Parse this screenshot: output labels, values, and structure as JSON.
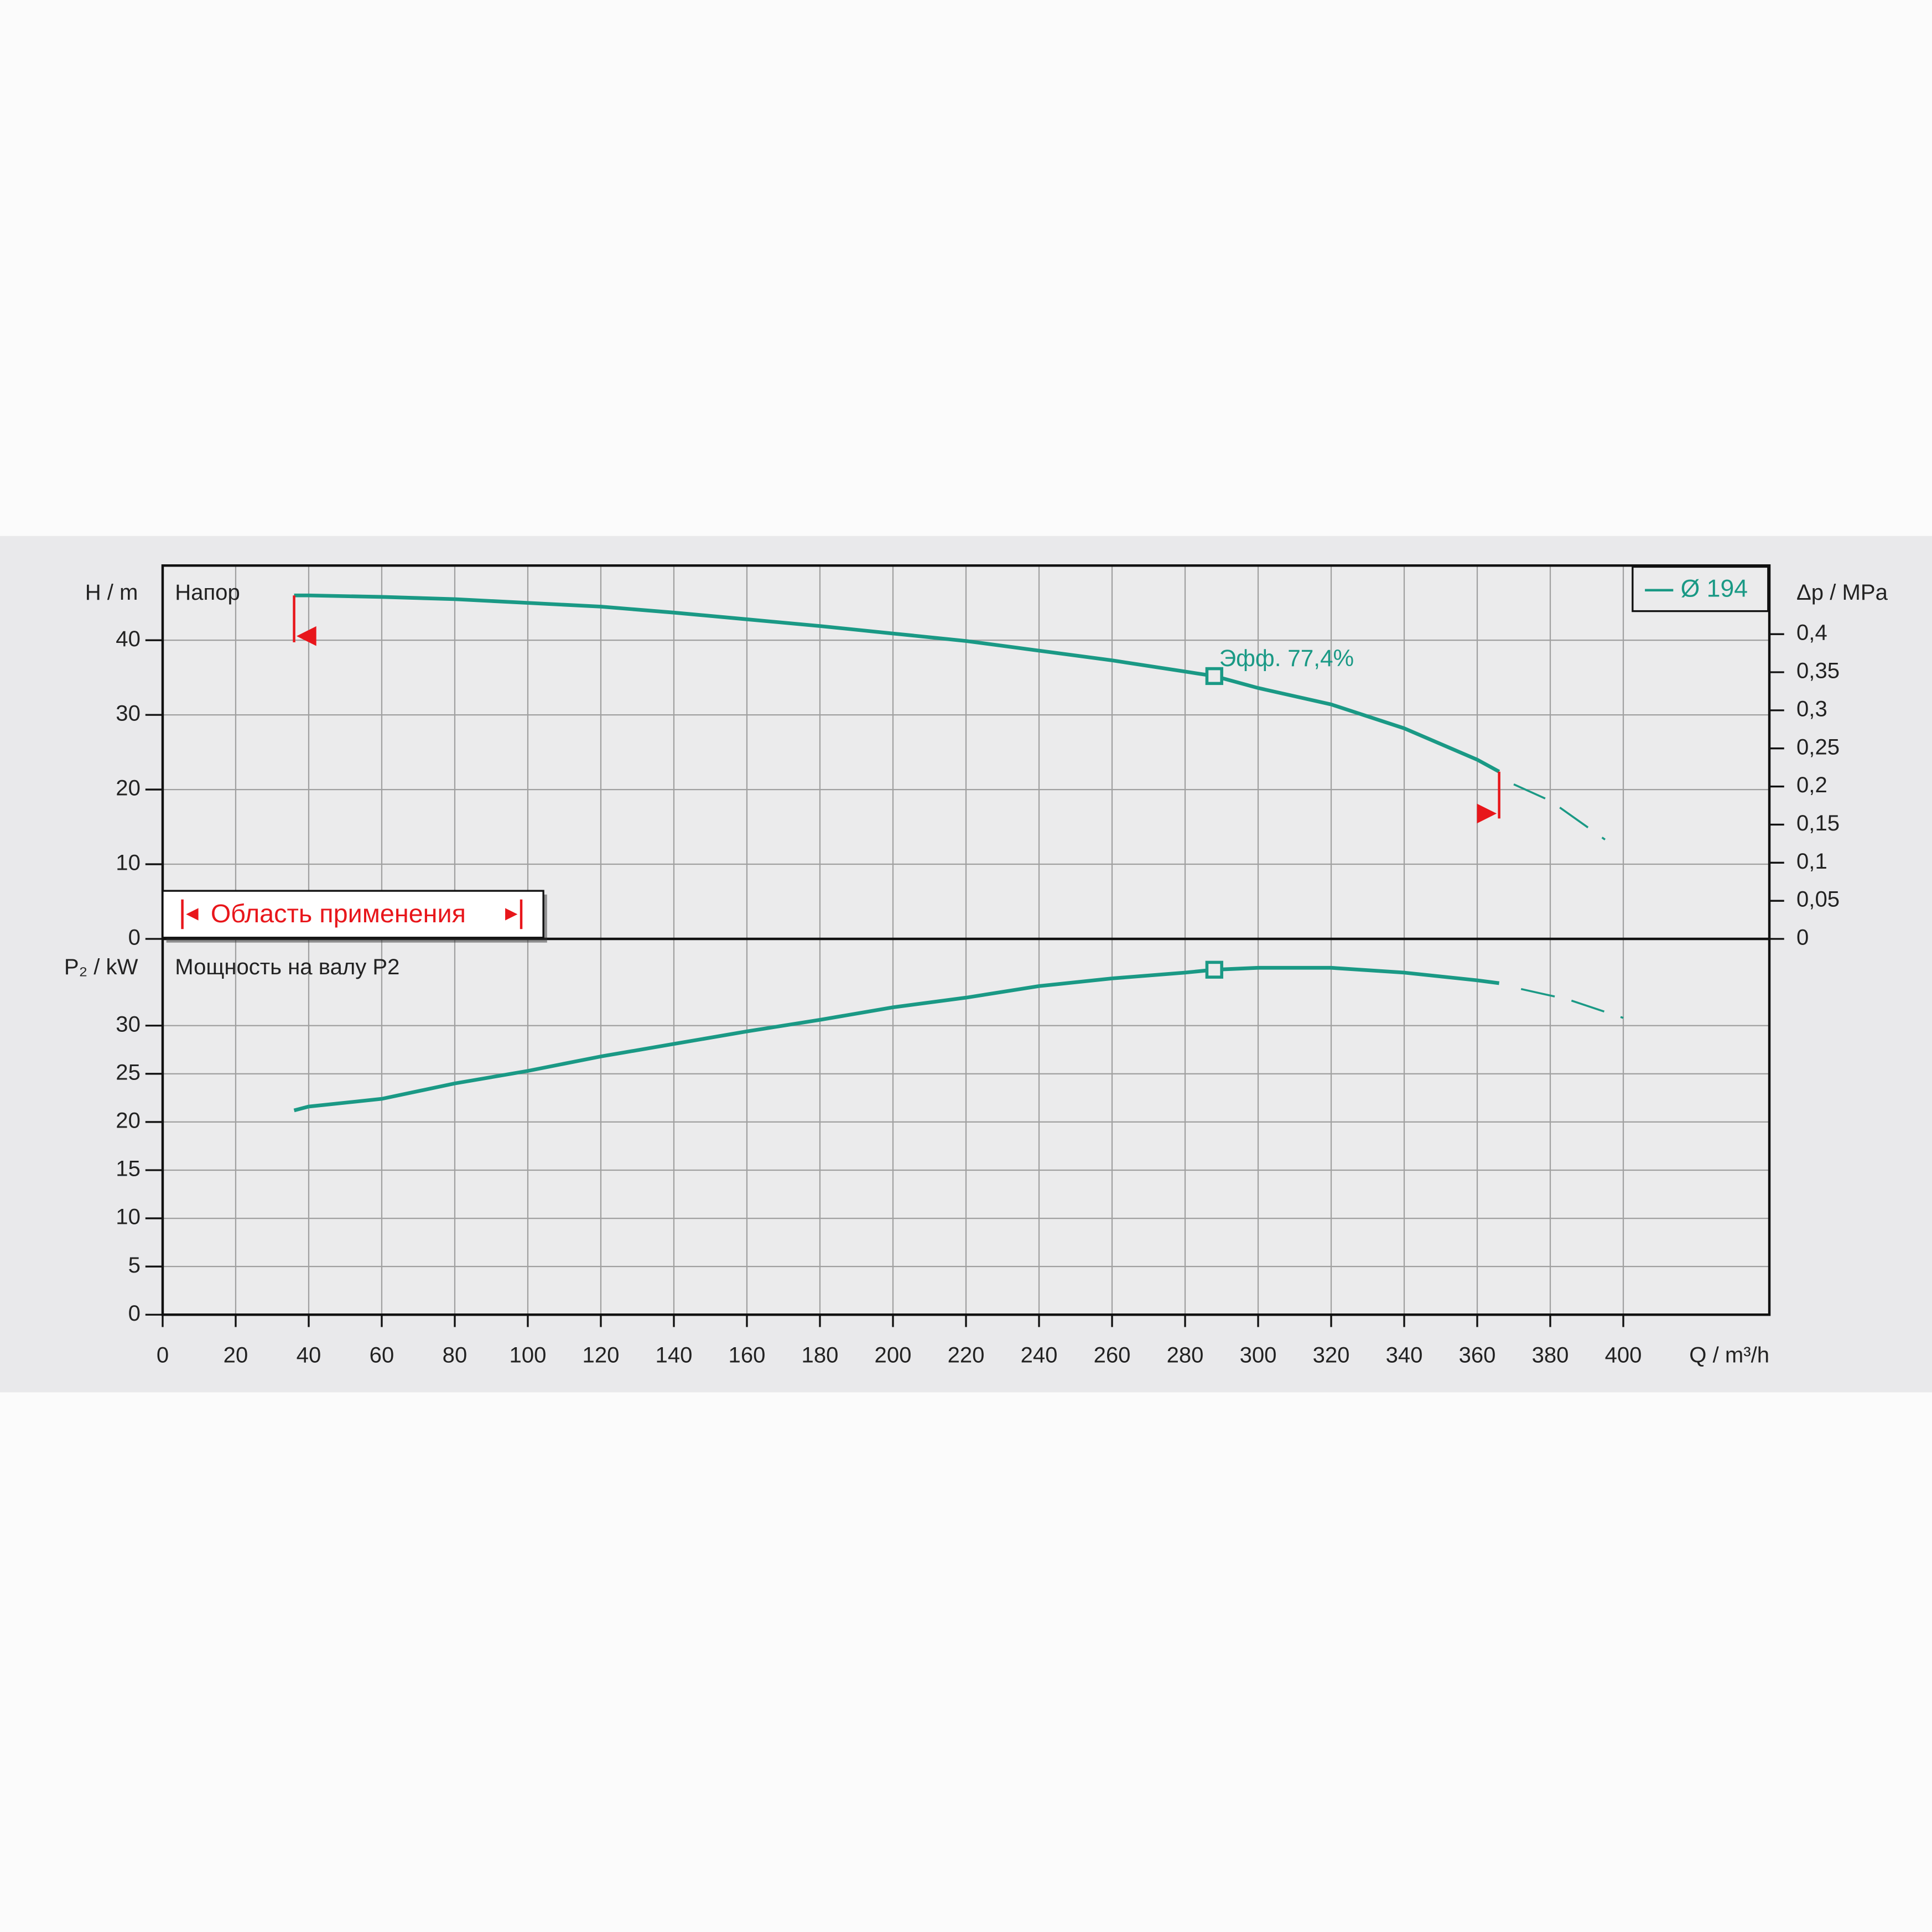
{
  "chart_data": [
    {
      "type": "line",
      "title": "Напор",
      "ylabel": "H / m",
      "y2label": "Δp / MPa",
      "xlim": [
        0,
        440
      ],
      "ylim": [
        0,
        50
      ],
      "yticks": [
        0,
        10,
        20,
        30,
        40
      ],
      "y2lim": [
        0,
        0.49
      ],
      "y2ticks": [
        0,
        {
          "value": 0.05,
          "label": "0,05"
        },
        {
          "value": 0.1,
          "label": "0,1"
        },
        {
          "value": 0.15,
          "label": "0,15"
        },
        {
          "value": 0.2,
          "label": "0,2"
        },
        {
          "value": 0.25,
          "label": "0,25"
        },
        {
          "value": 0.3,
          "label": "0,3"
        },
        {
          "value": 0.35,
          "label": "0,35"
        },
        {
          "value": 0.4,
          "label": "0,4"
        }
      ],
      "grid": true,
      "legend": "upper right",
      "series": [
        {
          "name": "Ø 194",
          "color": "#1a9985",
          "x": [
            36,
            40,
            60,
            80,
            100,
            120,
            140,
            160,
            180,
            200,
            220,
            240,
            260,
            280,
            288,
            300,
            320,
            340,
            360,
            366
          ],
          "values": [
            46,
            46,
            45.8,
            45.5,
            45,
            44.5,
            43.7,
            42.8,
            41.9,
            40.9,
            39.9,
            38.6,
            37.3,
            35.8,
            35.2,
            33.6,
            31.4,
            28.2,
            24,
            22.4
          ]
        },
        {
          "color": "#1a9985",
          "dash": true,
          "x": [
            370,
            380,
            395
          ],
          "values": [
            20.7,
            18.5,
            13.3
          ]
        }
      ],
      "operating_point": 288,
      "annotation": "Эфф.  77,4%",
      "limits": [
        36,
        366
      ],
      "limit_color": "#e8161b",
      "application_range_label": "Область применения"
    },
    {
      "type": "line",
      "title": "Мощность на валу P2",
      "ylabel": "P₂ / kW",
      "xlabel": "Q / m³/h",
      "xlim": [
        0,
        440
      ],
      "xticks": [
        0,
        20,
        40,
        60,
        80,
        100,
        120,
        140,
        160,
        180,
        200,
        220,
        240,
        260,
        280,
        300,
        320,
        340,
        360,
        380,
        400
      ],
      "ylim": [
        0,
        39
      ],
      "yticks": [
        0,
        5,
        10,
        15,
        20,
        25,
        30
      ],
      "grid": true,
      "series": [
        {
          "color": "#1a9985",
          "x": [
            36,
            40,
            60,
            80,
            100,
            120,
            140,
            160,
            180,
            200,
            220,
            240,
            260,
            280,
            288,
            300,
            320,
            340,
            360,
            366
          ],
          "values": [
            21.2,
            21.6,
            22.4,
            24,
            25.3,
            26.8,
            28.1,
            29.4,
            30.6,
            31.9,
            32.9,
            34.1,
            34.9,
            35.5,
            35.8,
            36,
            36,
            35.5,
            34.7,
            34.4
          ]
        },
        {
          "color": "#1a9985",
          "dash": true,
          "x": [
            372,
            385,
            400
          ],
          "values": [
            33.8,
            32.7,
            30.8
          ]
        }
      ],
      "operating_point": 288
    }
  ]
}
